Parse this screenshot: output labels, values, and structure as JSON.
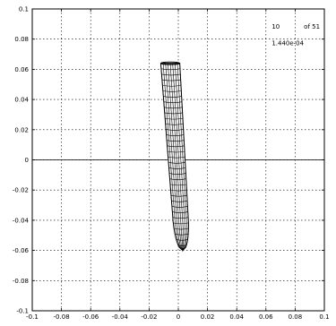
{
  "chart_data": {
    "type": "line",
    "title": "",
    "xlabel": "",
    "ylabel": "",
    "xlim": [
      -0.1,
      0.1
    ],
    "ylim": [
      -0.1,
      0.1
    ],
    "grid": true,
    "x_ticks": [
      "-0.1",
      "-0.08",
      "-0.06",
      "-0.04",
      "-0.02",
      "0",
      "0.02",
      "0.04",
      "0.06",
      "0.08",
      "0.1"
    ],
    "y_ticks": [
      "0.1",
      "0.08",
      "0.06",
      "0.04",
      "0.02",
      "0",
      "-0.02",
      "-0.04",
      "-0.06",
      "-0.08",
      "-0.1"
    ],
    "annotations": {
      "frame_number": "10",
      "frame_of": "of 51",
      "time_value": "1.440e-04"
    },
    "surface": {
      "description_free": true,
      "profile_points": [
        {
          "x": -0.0055,
          "y_top": 0.064,
          "half_width": 0.0065
        },
        {
          "x": -0.004,
          "y": 0.04,
          "half_width": 0.0064
        },
        {
          "x": -0.002,
          "y": 0.02,
          "half_width": 0.0062
        },
        {
          "x": 0.0,
          "y": 0.0,
          "half_width": 0.006
        },
        {
          "x": 0.002,
          "y": -0.02,
          "half_width": 0.0058
        },
        {
          "x": 0.003,
          "y": -0.04,
          "half_width": 0.005
        },
        {
          "x": 0.003,
          "y": -0.052,
          "half_width": 0.0035
        },
        {
          "x": 0.003,
          "y": -0.06,
          "half_width": 0.0
        }
      ],
      "vertical_mesh_lines": 9,
      "horizontal_mesh_lines": 34
    }
  }
}
